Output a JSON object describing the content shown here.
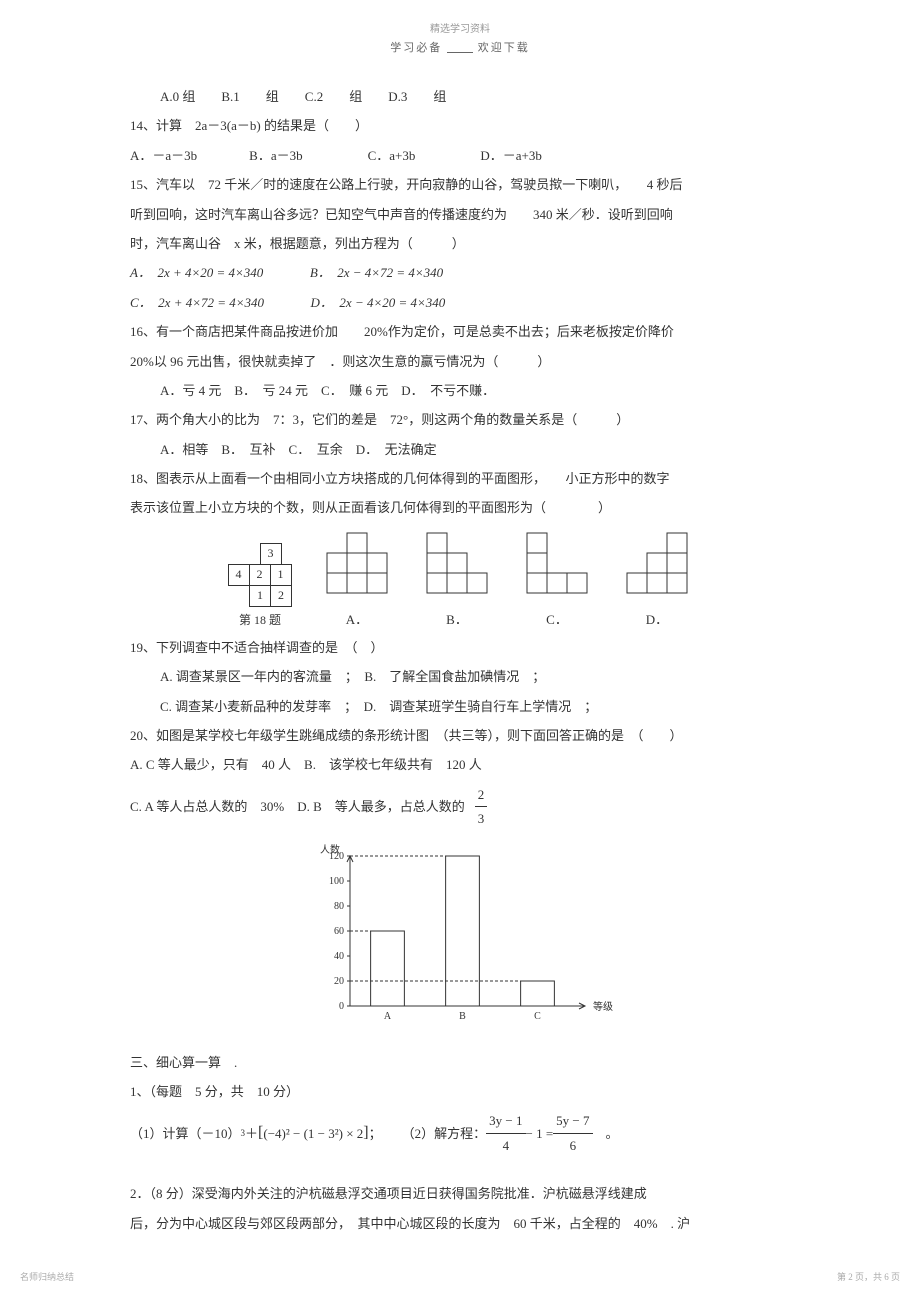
{
  "header": {
    "top": "精选学习资料",
    "sub_left": "学习必备",
    "sub_right": "欢迎下载"
  },
  "q13_options": "A.0 组　　B.1　　组　　C.2　　组　　D.3　　组",
  "q14": {
    "stem": "14、计算　2a－3(a－b) 的结果是（　　）",
    "opts": "A．－a－3b　　　　B．a－3b　　　　　C．a+3b　　　　　D．－a+3b"
  },
  "q15": {
    "l1": "15、汽车以　72 千米／时的速度在公路上行驶，开向寂静的山谷，驾驶员揿一下喇叭，　　4 秒后",
    "l2": "听到回响，这时汽车离山谷多远？已知空气中声音的传播速度约为　　340 米／秒．设听到回响",
    "l3": "时，汽车离山谷　x 米，根据题意，列出方程为（　　　）",
    "optA": "A．　2x + 4×20 = 4×340",
    "optB": "B．　2x − 4×72 = 4×340",
    "optC": "C．　2x + 4×72 = 4×340",
    "optD": "D．　2x − 4×20 = 4×340"
  },
  "q16": {
    "l1": "16、有一个商店把某件商品按进价加　　20%作为定价，可是总卖不出去；后来老板按定价降价",
    "l2": "20%以 96 元出售，很快就卖掉了　．则这次生意的赢亏情况为（　　　）",
    "opts": "A．亏 4 元　B．　亏 24 元　C．　赚 6 元　D．　不亏不赚．"
  },
  "q17": {
    "stem": "17、两个角大小的比为　7：3，它们的差是　72°，则这两个角的数量关系是（　　　）",
    "opts": "A．相等　B．　互补　C．　互余　D．　无法确定"
  },
  "q18": {
    "l1": "18、图表示从上面看一个由相同小立方块搭成的几何体得到的平面图形，　　小正方形中的数字",
    "l2": "表示该位置上小立方块的个数，则从正面看该几何体得到的平面图形为（　　　　）",
    "grid_label": "第 18 题",
    "grid_data": {
      "r1": [
        "3"
      ],
      "r2": [
        "4",
        "2",
        "1"
      ],
      "r3": [
        "1",
        "2"
      ]
    },
    "labels": {
      "A": "A．",
      "B": "B．",
      "C": "C．",
      "D": "D．"
    }
  },
  "q19": {
    "stem": "19、下列调查中不适合抽样调查的是　（　）",
    "l1": "A. 调查某景区一年内的客流量　；　B.　了解全国食盐加碘情况　；",
    "l2": "C. 调查某小麦新品种的发芽率　；　D.　调查某班学生骑自行车上学情况　；"
  },
  "q20": {
    "stem": "20、如图是某学校七年级学生跳绳成绩的条形统计图　（共三等），则下面回答正确的是　（　　）",
    "optAB": "A. C 等人最少，只有　40 人　B.　该学校七年级共有　120 人",
    "optC_left": "C. A 等人占总人数的　30%　D. B　等人最多，占总人数的",
    "frac_num": "2",
    "frac_den": "3"
  },
  "bar_chart": {
    "ylabel": "人数",
    "xlabel": "等级",
    "ymax": 120,
    "ytick_step": 20,
    "categories": [
      "A",
      "B",
      "C"
    ],
    "values": [
      60,
      120,
      20
    ],
    "bar_color": "#ffffff",
    "border_color": "#333333",
    "text_color": "#333333",
    "font_size": 10
  },
  "section3": {
    "title": "三、细心算一算　.",
    "l1": "1、（每题　5 分，共　10 分）",
    "calc_label": "（1）计算（－10）",
    "calc_sup": "3",
    "calc_mid": "＋",
    "calc_inner": "(−4)² − (1 − 3²) × 2",
    "calc_semi": "；",
    "solve_label": "（2）解方程：",
    "eq_l_num": "3y − 1",
    "eq_l_den": "4",
    "eq_mid": " − 1 = ",
    "eq_r_num": "5y − 7",
    "eq_r_den": "6",
    "eq_end": "　。"
  },
  "q2bottom": {
    "l1": "2．（8 分）深受海内外关注的沪杭磁悬浮交通项目近日获得国务院批准．沪杭磁悬浮线建成",
    "l2": "后，分为中心城区段与郊区段两部分，　其中中心城区段的长度为　60 千米，占全程的　40%　. 沪"
  },
  "footer": {
    "left": "名师归纳总结",
    "right": "第 2 页，共 6 页"
  },
  "colors": {
    "text": "#333333",
    "light": "#999999",
    "bg": "#ffffff"
  }
}
